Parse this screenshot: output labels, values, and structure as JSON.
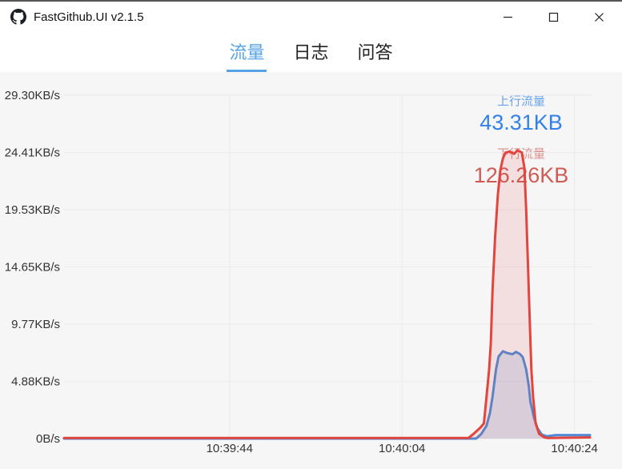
{
  "window": {
    "title": "FastGithub.UI v2.1.5",
    "controls": [
      "minimize",
      "maximize",
      "close"
    ]
  },
  "tabs": [
    {
      "label": "流量",
      "active": true
    },
    {
      "label": "日志",
      "active": false
    },
    {
      "label": "问答",
      "active": false
    }
  ],
  "legend": {
    "upload_label": "上行流量",
    "upload_value": "43.31KB",
    "download_label": "下行流量",
    "download_value": "126.26KB"
  },
  "colors": {
    "accent_blue": "#56a3e6",
    "upload_line": "#4f8bd6",
    "upload_fill": "rgba(79,139,214,0.18)",
    "download_line": "#e2453e",
    "download_fill": "rgba(226,69,62,0.13)",
    "grid": "#ebebed",
    "axis_text": "#333333",
    "chart_bg": "#f6f6f7"
  },
  "chart_data": {
    "type": "area",
    "title": "",
    "xlabel": "",
    "ylabel": "KB/s",
    "grid": true,
    "legend_position": "top-right",
    "x_axis": {
      "unit": "seconds relative to 10:39:44",
      "t_min": -19.2,
      "t_max": 41.8,
      "ticks": [
        {
          "t": 0,
          "label": "10:39:44"
        },
        {
          "t": 20,
          "label": "10:40:04"
        },
        {
          "t": 40,
          "label": "10:40:24"
        }
      ]
    },
    "y_axis": {
      "unit": "KB/s",
      "max": 29.3,
      "ticks": [
        {
          "value": 0,
          "label": "0B/s"
        },
        {
          "value": 4.88,
          "label": "4.88KB/s"
        },
        {
          "value": 9.77,
          "label": "9.77KB/s"
        },
        {
          "value": 14.65,
          "label": "14.65KB/s"
        },
        {
          "value": 19.53,
          "label": "19.53KB/s"
        },
        {
          "value": 24.41,
          "label": "24.41KB/s"
        },
        {
          "value": 29.3,
          "label": "29.30KB/s"
        }
      ]
    },
    "series": [
      {
        "name": "上行流量",
        "total": "43.31KB",
        "color": "#4f8bd6",
        "fill": "rgba(79,139,214,0.18)",
        "points": [
          [
            -19.2,
            0
          ],
          [
            28.6,
            0
          ],
          [
            29.2,
            0.4
          ],
          [
            29.8,
            1.1
          ],
          [
            30.2,
            2.2
          ],
          [
            30.5,
            3.6
          ],
          [
            30.9,
            5.9
          ],
          [
            31.2,
            7.0
          ],
          [
            31.7,
            7.45
          ],
          [
            32.2,
            7.3
          ],
          [
            32.8,
            7.2
          ],
          [
            33.2,
            7.4
          ],
          [
            33.7,
            7.2
          ],
          [
            34.0,
            6.95
          ],
          [
            34.4,
            5.9
          ],
          [
            34.7,
            4.5
          ],
          [
            34.9,
            3.1
          ],
          [
            35.3,
            1.8
          ],
          [
            35.7,
            0.9
          ],
          [
            36.2,
            0.35
          ],
          [
            36.8,
            0.2
          ],
          [
            37.8,
            0.3
          ],
          [
            40.5,
            0.3
          ],
          [
            41.8,
            0.3
          ]
        ]
      },
      {
        "name": "下行流量",
        "total": "126.26KB",
        "color": "#e2453e",
        "fill": "rgba(226,69,62,0.13)",
        "points": [
          [
            -19.2,
            0.05
          ],
          [
            27.7,
            0.05
          ],
          [
            28.3,
            0.4
          ],
          [
            29.1,
            0.95
          ],
          [
            29.5,
            1.3
          ],
          [
            29.8,
            3.6
          ],
          [
            30.1,
            5.9
          ],
          [
            30.3,
            8.1
          ],
          [
            30.5,
            12.7
          ],
          [
            30.8,
            17.2
          ],
          [
            31.1,
            20.7
          ],
          [
            31.4,
            22.9
          ],
          [
            31.7,
            23.9
          ],
          [
            32.0,
            24.4
          ],
          [
            32.5,
            24.5
          ],
          [
            33.0,
            24.3
          ],
          [
            33.4,
            24.6
          ],
          [
            33.9,
            24.4
          ],
          [
            34.2,
            23.1
          ],
          [
            34.4,
            19.5
          ],
          [
            34.6,
            14.9
          ],
          [
            34.8,
            10.4
          ],
          [
            35.0,
            5.9
          ],
          [
            35.2,
            3.6
          ],
          [
            35.5,
            1.3
          ],
          [
            35.9,
            0.4
          ],
          [
            36.5,
            0.1
          ],
          [
            36.9,
            0.05
          ],
          [
            41.8,
            0.1
          ]
        ]
      }
    ]
  }
}
